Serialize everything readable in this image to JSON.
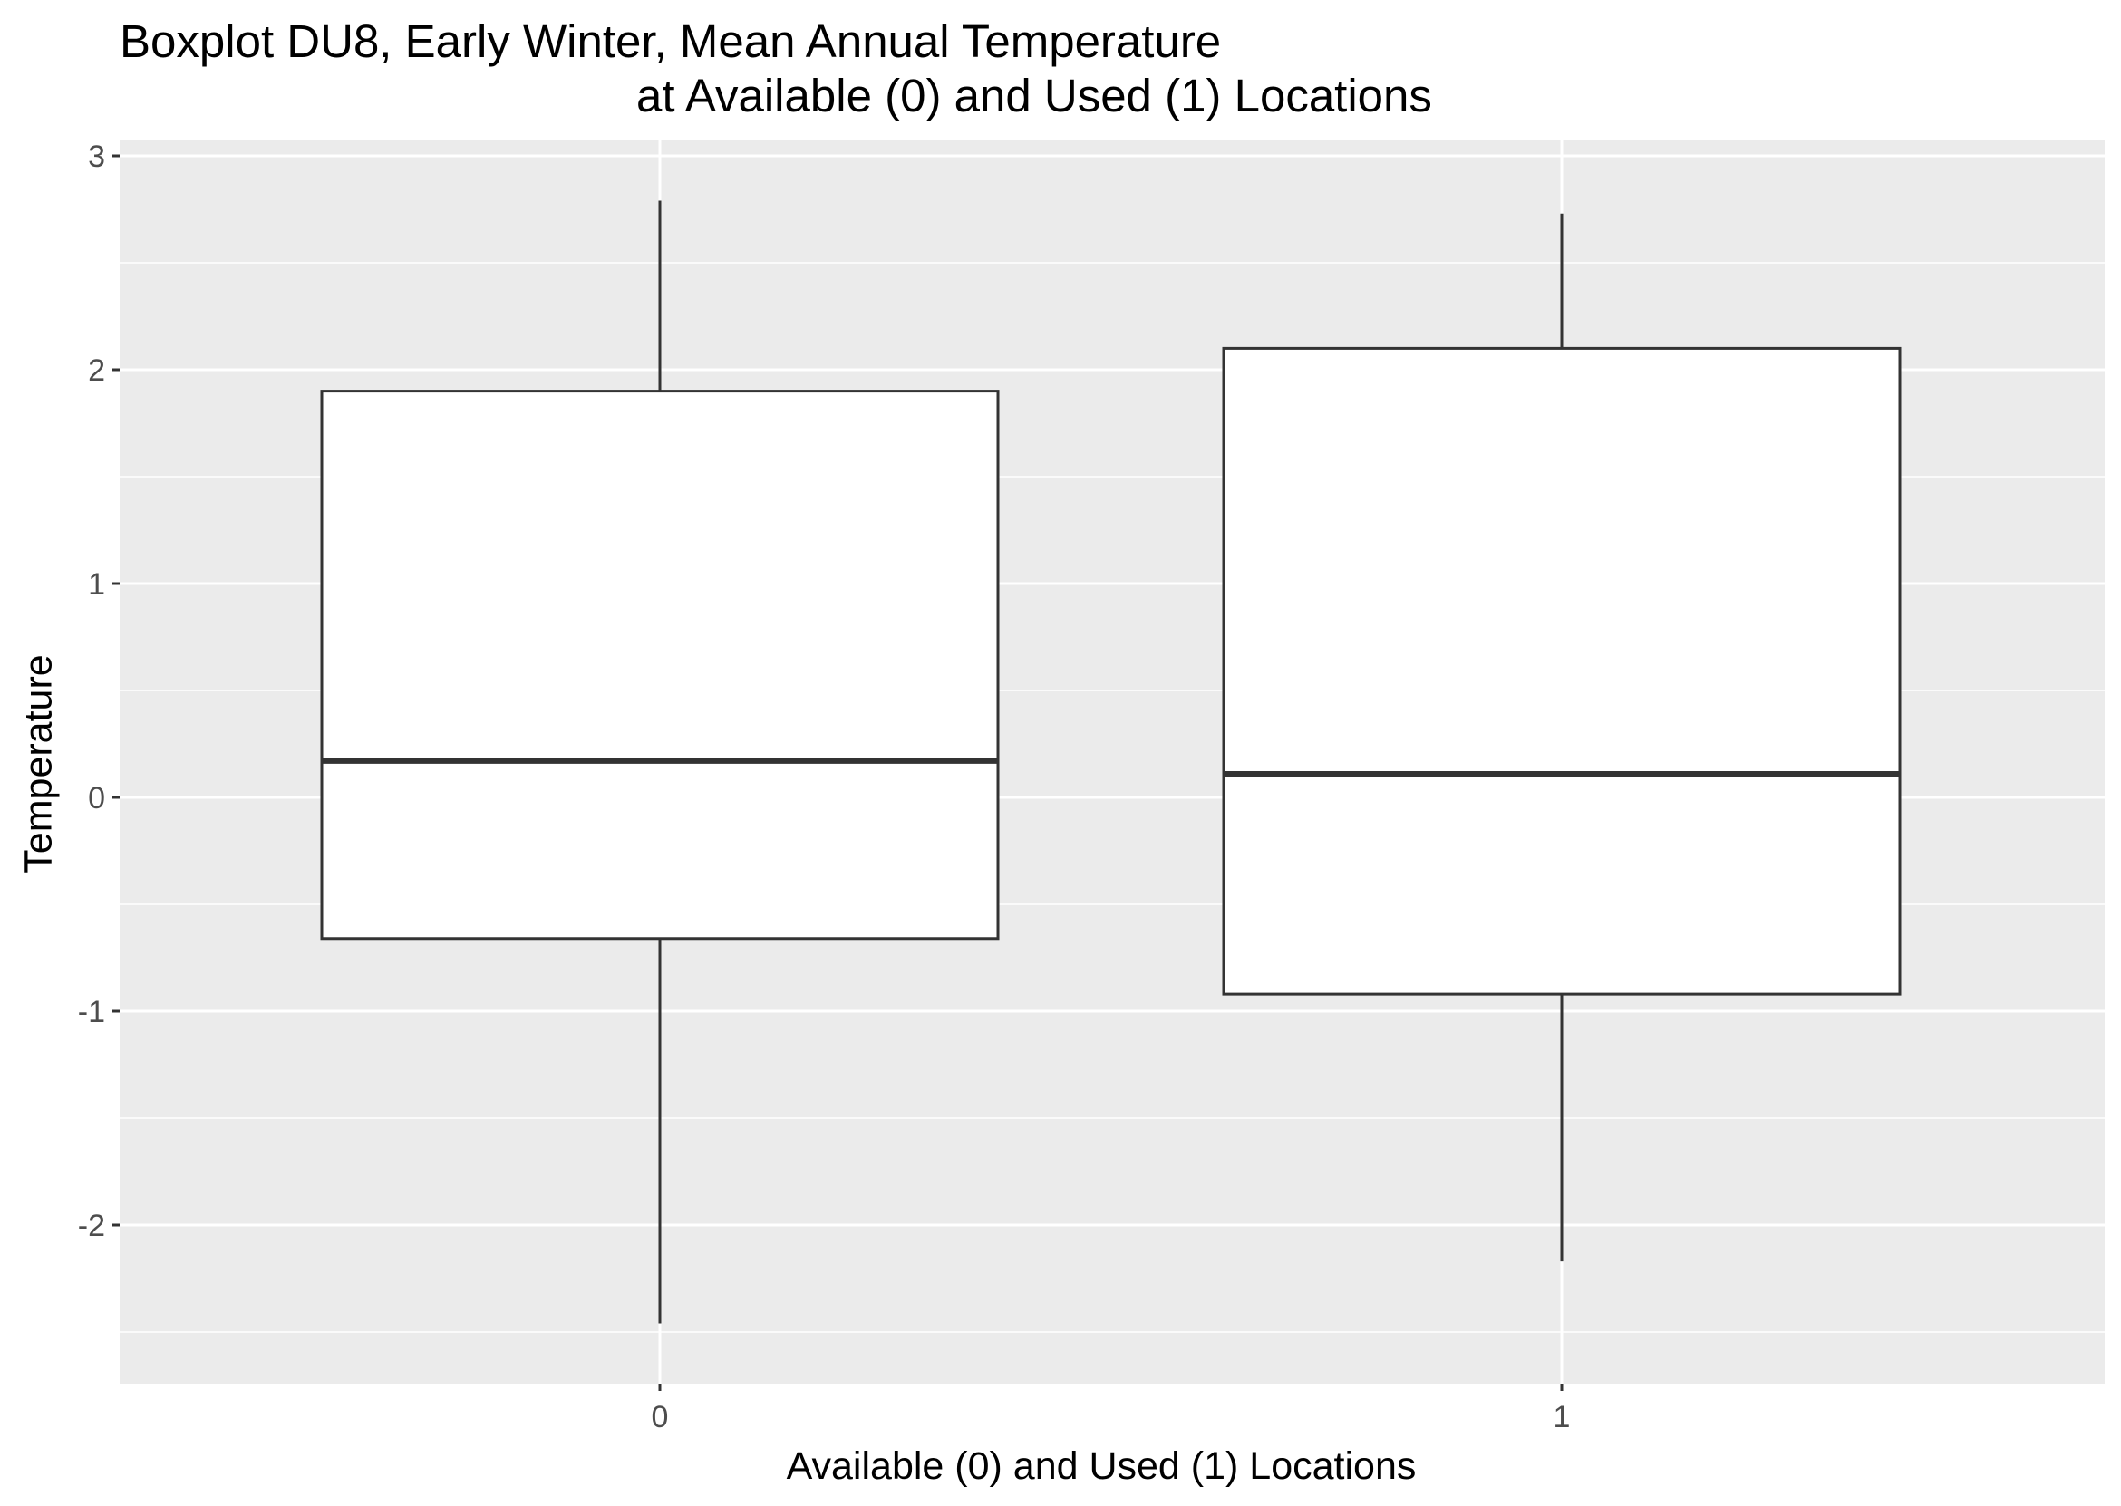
{
  "chart_data": {
    "type": "boxplot",
    "title": "Boxplot DU8, Early Winter, Mean Annual Temperature",
    "subtitle": "at Available (0) and Used (1) Locations",
    "xlabel": "Available (0) and Used (1) Locations",
    "ylabel": "Temperature",
    "categories": [
      "0",
      "1"
    ],
    "ylim": [
      -2.7,
      3.05
    ],
    "yticks": [
      -2,
      -1,
      0,
      1,
      2,
      3
    ],
    "ytick_labels": [
      "-2",
      "-1",
      "0",
      "1",
      "2",
      "3"
    ],
    "grid": true,
    "legend": "none",
    "boxes": [
      {
        "category": "0",
        "whisker_low": -2.46,
        "q1": -0.66,
        "median": 0.17,
        "q3": 1.9,
        "whisker_high": 2.79
      },
      {
        "category": "1",
        "whisker_low": -2.17,
        "q1": -0.92,
        "median": 0.11,
        "q3": 2.1,
        "whisker_high": 2.73
      }
    ],
    "colors": {
      "panel": "#EBEBEB",
      "grid": "#FFFFFF",
      "box_fill": "#FFFFFF",
      "box_stroke": "#333333",
      "tick_text": "#4D4D4D"
    }
  }
}
